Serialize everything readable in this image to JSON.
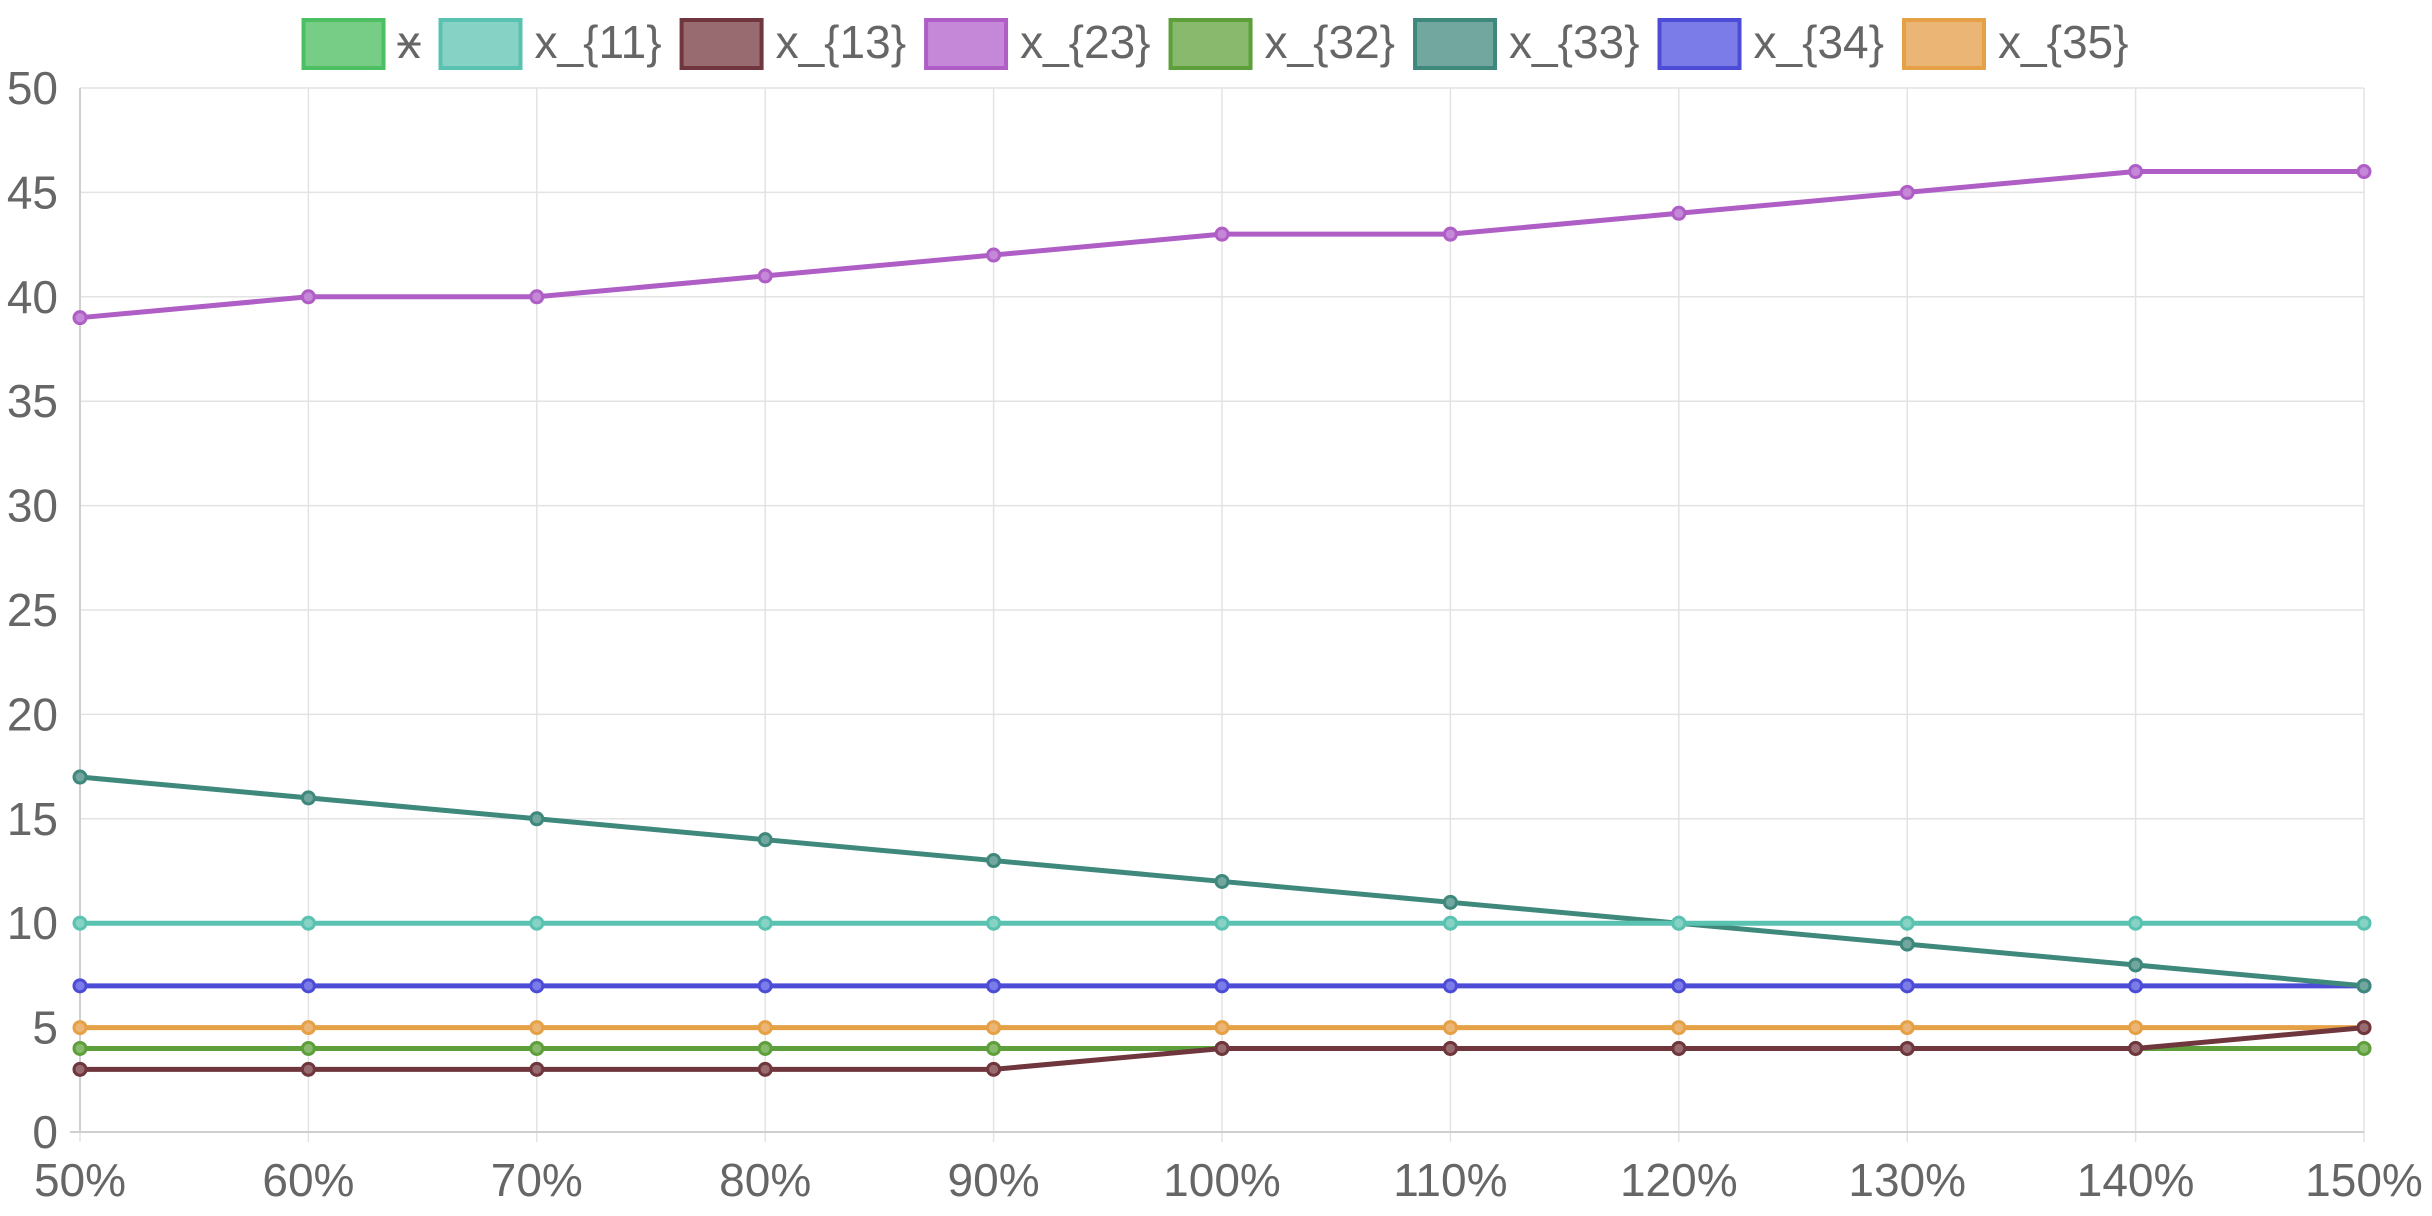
{
  "chart_data": {
    "type": "line",
    "categories": [
      "50%",
      "60%",
      "70%",
      "80%",
      "90%",
      "100%",
      "110%",
      "120%",
      "130%",
      "140%",
      "150%"
    ],
    "ylim": [
      0,
      50
    ],
    "y_ticks": [
      "0",
      "5",
      "10",
      "15",
      "20",
      "25",
      "30",
      "35",
      "40",
      "45",
      "50"
    ],
    "grid": true,
    "legend_position": "top",
    "series": [
      {
        "name": "x",
        "color": "#4cbf63",
        "fill": "#77cc86",
        "values": [
          4,
          4,
          4,
          4,
          4,
          4,
          4,
          4,
          4,
          4,
          4
        ],
        "hidden": true
      },
      {
        "name": "x_{11}",
        "color": "#5ac2b0",
        "fill": "#86d2c5",
        "values": [
          10,
          10,
          10,
          10,
          10,
          10,
          10,
          10,
          10,
          10,
          10
        ]
      },
      {
        "name": "x_{13}",
        "color": "#6f373d",
        "fill": "#986b70",
        "values": [
          3,
          3,
          3,
          3,
          3,
          4,
          4,
          4,
          4,
          4,
          5
        ]
      },
      {
        "name": "x_{23}",
        "color": "#ae5ec4",
        "fill": "#c587d8",
        "values": [
          39,
          40,
          40,
          41,
          42,
          43,
          43,
          44,
          45,
          46,
          46
        ]
      },
      {
        "name": "x_{32}",
        "color": "#5d9f3a",
        "fill": "#88b96d",
        "values": [
          4,
          4,
          4,
          4,
          4,
          4,
          4,
          4,
          4,
          4,
          4
        ]
      },
      {
        "name": "x_{33}",
        "color": "#3f887c",
        "fill": "#72a7a0",
        "values": [
          17,
          16,
          15,
          14,
          13,
          12,
          11,
          10,
          9,
          8,
          7
        ]
      },
      {
        "name": "x_{34}",
        "color": "#4c4cd6",
        "fill": "#7c7ce8",
        "values": [
          7,
          7,
          7,
          7,
          7,
          7,
          7,
          7,
          7,
          7,
          7
        ]
      },
      {
        "name": "x_{35}",
        "color": "#e6a045",
        "fill": "#ebb575",
        "values": [
          5,
          5,
          5,
          5,
          5,
          5,
          5,
          5,
          5,
          5,
          5
        ]
      }
    ]
  }
}
